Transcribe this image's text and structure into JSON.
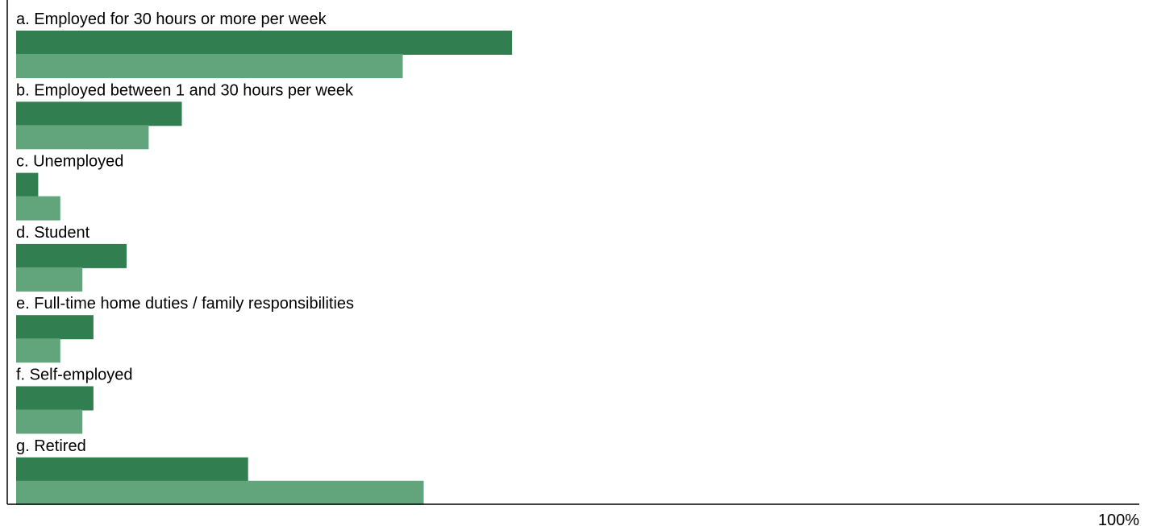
{
  "chart_data": {
    "type": "bar",
    "orientation": "horizontal",
    "categories": [
      "a. Employed for 30 hours or more per week",
      "b. Employed between 1 and 30 hours per week",
      "c. Unemployed",
      "d. Student",
      "e. Full-time home duties / family responsibilities",
      "f. Self-employed",
      "g. Retired"
    ],
    "series": [
      {
        "color": "#317e51",
        "values": [
          44.9,
          15.0,
          2.0,
          10.0,
          7.0,
          7.0,
          21.0
        ]
      },
      {
        "color": "#62a57c",
        "values": [
          35.0,
          12.0,
          4.0,
          6.0,
          4.0,
          6.0,
          36.9
        ]
      }
    ],
    "xlim": [
      0,
      100
    ],
    "x_tick_labels": [
      "100%"
    ],
    "grid": false,
    "legend": "none"
  }
}
